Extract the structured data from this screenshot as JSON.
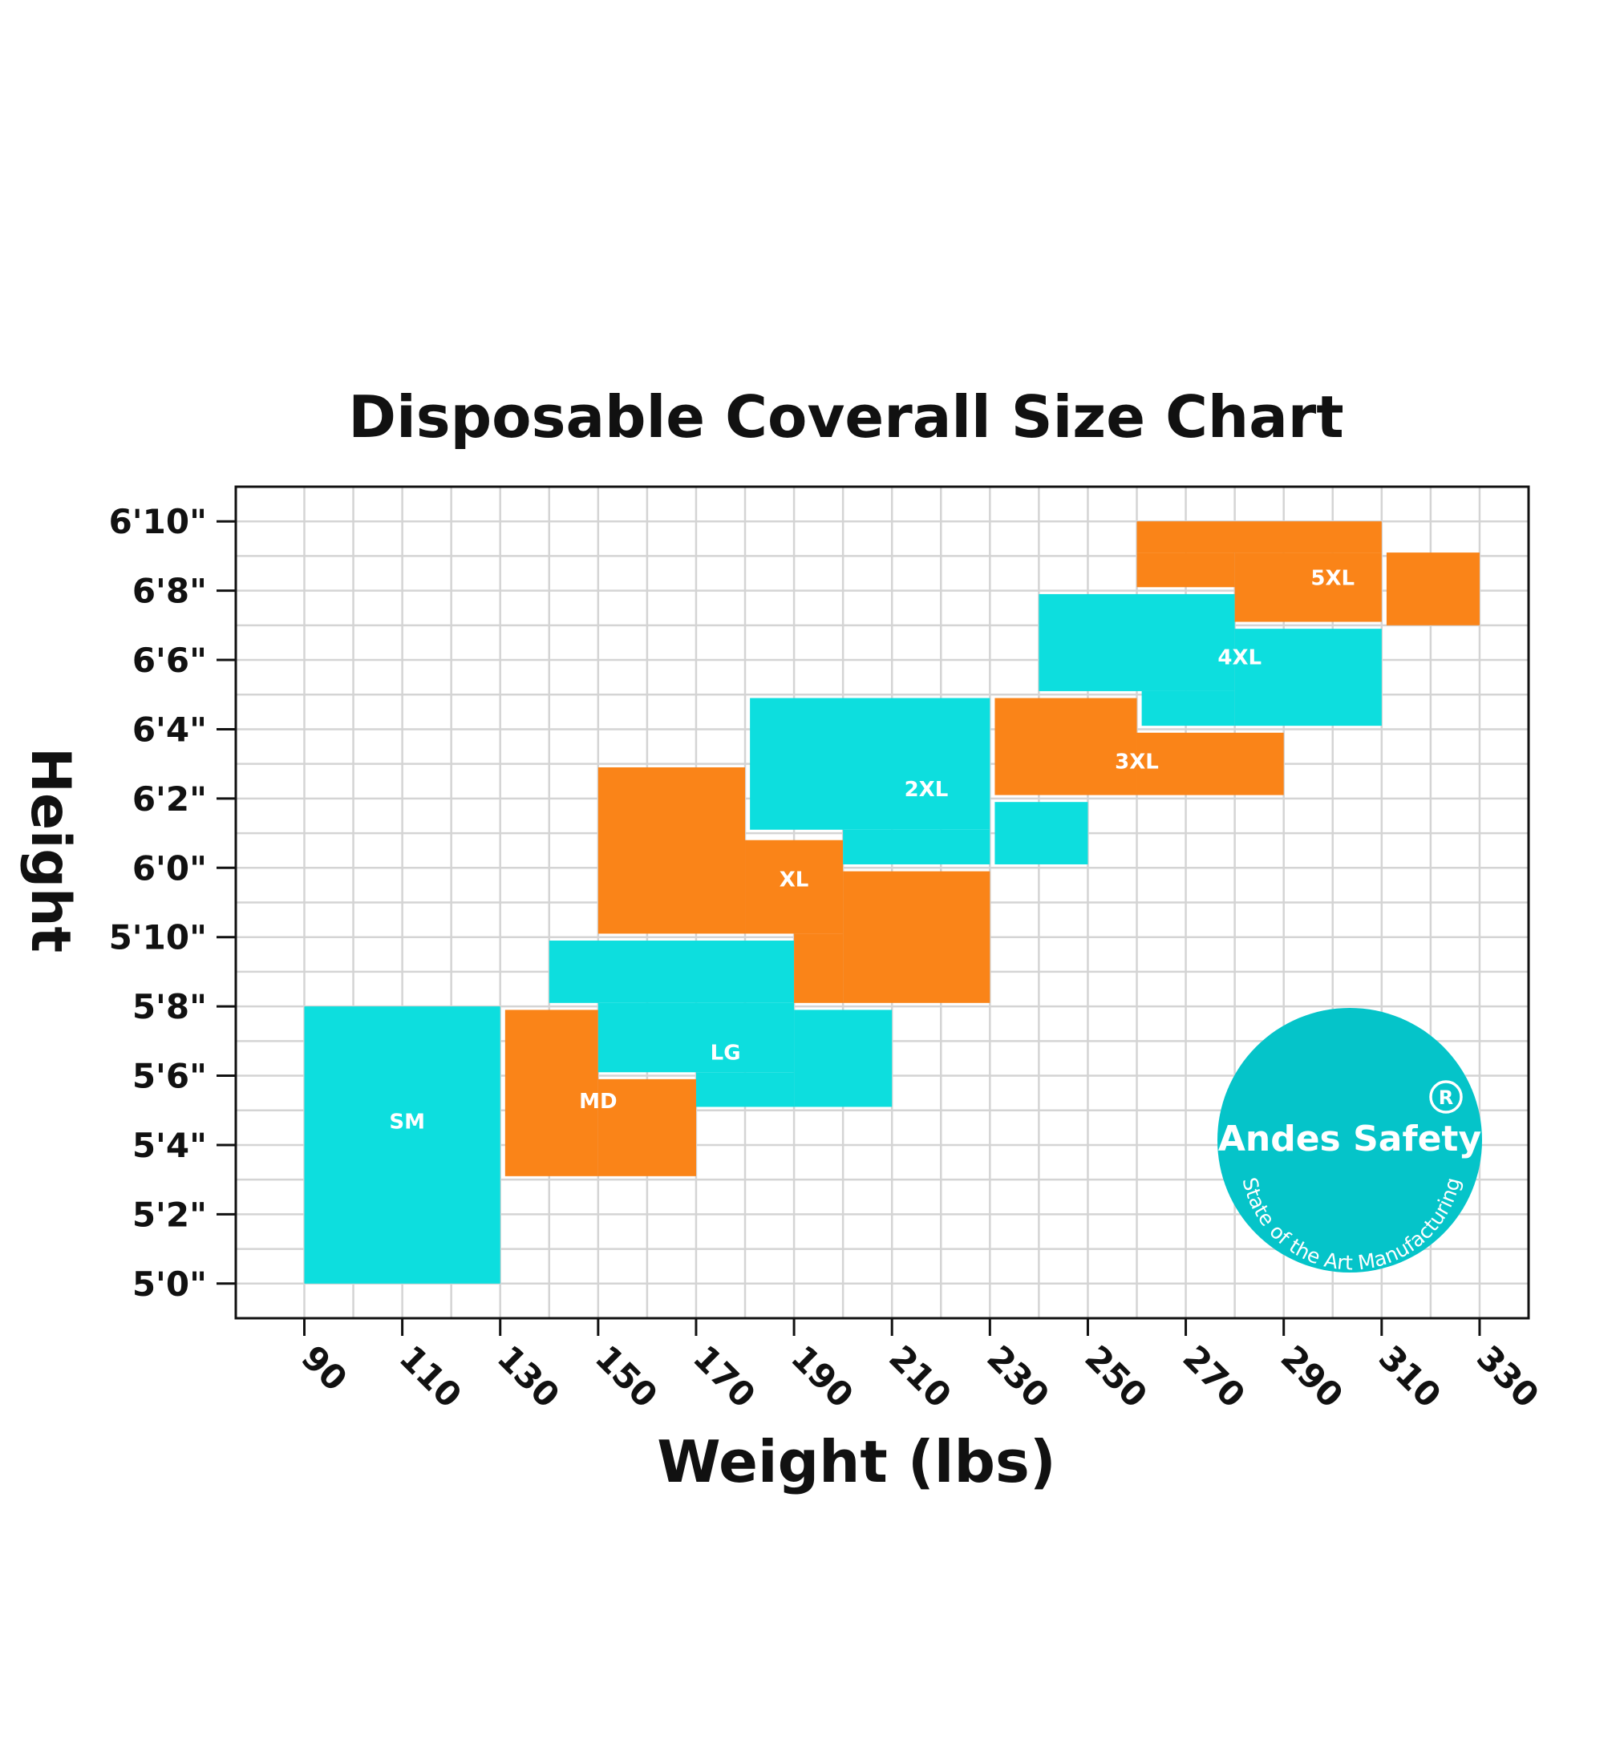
{
  "chart_data": {
    "type": "table",
    "title": "Disposable Coverall Size Chart",
    "xlabel": "Weight (lbs)",
    "ylabel": "Height",
    "x_unit": "lbs",
    "y_unit": "inches",
    "xlim": [
      76,
      340
    ],
    "ylim": [
      59,
      83
    ],
    "x_ticks": [
      90,
      110,
      130,
      150,
      170,
      190,
      210,
      230,
      250,
      270,
      290,
      310,
      330
    ],
    "y_ticks": [
      {
        "value": 60,
        "label": "5'0\""
      },
      {
        "value": 62,
        "label": "5'2\""
      },
      {
        "value": 64,
        "label": "5'4\""
      },
      {
        "value": 66,
        "label": "5'6\""
      },
      {
        "value": 68,
        "label": "5'8\""
      },
      {
        "value": 70,
        "label": "5'10\""
      },
      {
        "value": 72,
        "label": "6'0\""
      },
      {
        "value": 74,
        "label": "6'2\""
      },
      {
        "value": 76,
        "label": "6'4\""
      },
      {
        "value": 78,
        "label": "6'6\""
      },
      {
        "value": 80,
        "label": "6'8\""
      },
      {
        "value": 82,
        "label": "6'10\""
      }
    ],
    "grid": true,
    "series": [
      {
        "name": "SM",
        "color": "#0DDEDE",
        "label_at": [
          111,
          64.7
        ],
        "rects": [
          [
            90,
            130,
            60,
            68
          ]
        ]
      },
      {
        "name": "MD",
        "color": "#FA8418",
        "label_at": [
          150,
          65.3
        ],
        "rects": [
          [
            131,
            150,
            63.1,
            67.9
          ],
          [
            150,
            170,
            63.1,
            65.9
          ]
        ]
      },
      {
        "name": "LG",
        "color": "#0DDEDE",
        "label_at": [
          176,
          66.7
        ],
        "rects": [
          [
            140,
            190,
            68.1,
            69.9
          ],
          [
            150,
            190,
            66.1,
            68.1
          ],
          [
            170,
            190,
            65.1,
            66.1
          ],
          [
            190,
            210,
            65.1,
            67.9
          ]
        ]
      },
      {
        "name": "XL",
        "color": "#FA8418",
        "label_at": [
          190,
          71.7
        ],
        "rects": [
          [
            150,
            180,
            70.1,
            74.9
          ],
          [
            180,
            200,
            70.1,
            72.8
          ],
          [
            200,
            230,
            68.1,
            71.9
          ],
          [
            190,
            200,
            68.1,
            70.1
          ]
        ]
      },
      {
        "name": "2XL",
        "color": "#0DDEDE",
        "label_at": [
          217,
          74.3
        ],
        "rects": [
          [
            181,
            230,
            73.1,
            76.9
          ],
          [
            200,
            230,
            72.1,
            73.1
          ],
          [
            231,
            250,
            72.1,
            73.9
          ]
        ]
      },
      {
        "name": "3XL",
        "color": "#FA8418",
        "label_at": [
          260,
          75.1
        ],
        "rects": [
          [
            231,
            260,
            74.1,
            76.9
          ],
          [
            260,
            290,
            74.1,
            75.9
          ]
        ]
      },
      {
        "name": "4XL",
        "color": "#0DDEDE",
        "label_at": [
          281,
          78.1
        ],
        "rects": [
          [
            240,
            280,
            77.1,
            79.9
          ],
          [
            280,
            310,
            76.1,
            78.9
          ],
          [
            261,
            280,
            76.1,
            77.1
          ]
        ]
      },
      {
        "name": "5XL",
        "color": "#FA8418",
        "label_at": [
          300,
          80.4
        ],
        "rects": [
          [
            260,
            310,
            81.1,
            82
          ],
          [
            260,
            280,
            80.1,
            81.1
          ],
          [
            280,
            310,
            79.1,
            81.1
          ],
          [
            311,
            330,
            79.0,
            81.1
          ]
        ]
      }
    ]
  },
  "logo": {
    "brand": "Andes Safety",
    "tagline": "State of the Art Manufacturing",
    "registered_mark": "R",
    "color": "#05C4C9"
  }
}
